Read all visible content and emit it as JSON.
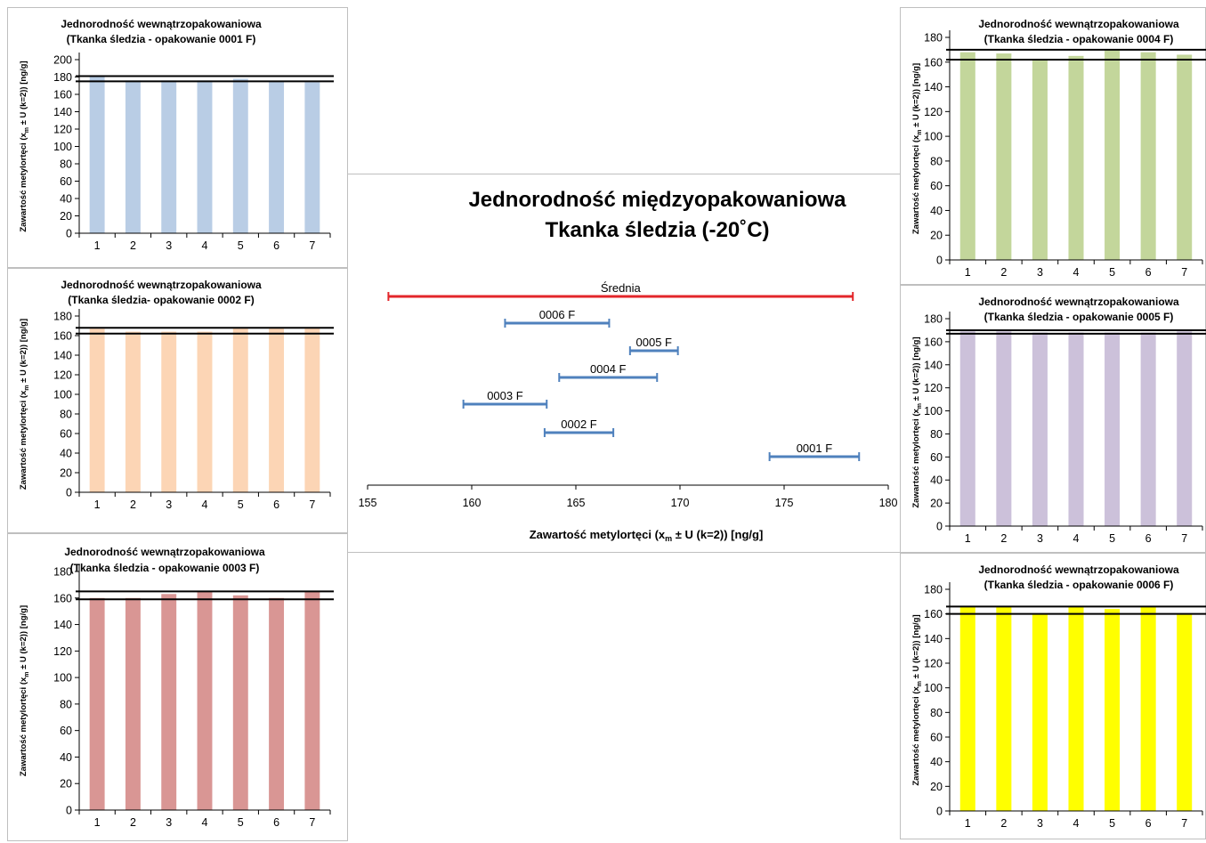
{
  "main": {
    "title_line1": "Jednorodność międzyopakowaniowa",
    "title_line2": "Tkanka śledzia (-20˚C)"
  },
  "colors": {
    "red_mean": "#e3262a",
    "blue_interval": "#4f81bd",
    "pkg_0001": "#b9cde5",
    "pkg_0002": "#fcd5b5",
    "pkg_0003": "#d99694",
    "pkg_0004": "#c3d69b",
    "pkg_0005": "#ccc1da",
    "pkg_0006": "#ffff00"
  },
  "chart_data": [
    {
      "id": "between",
      "type": "interval",
      "title": "Jednorodność międzyopakowaniowa Tkanka śledzia (-20˚C)",
      "xlabel": "Zawartość metylortęci (x",
      "xlabel_sub": "m",
      "xlabel_end": " ± U (k=2)) [ng/g]",
      "xlim": [
        155,
        180
      ],
      "xticks": [
        "155",
        "160",
        "165",
        "170",
        "175",
        "180"
      ],
      "intervals": [
        {
          "name": "Średnia",
          "low": 156.0,
          "high": 178.3,
          "color": "red"
        },
        {
          "name": "0006 F",
          "low": 161.6,
          "high": 166.6
        },
        {
          "name": "0005 F",
          "low": 167.6,
          "high": 169.9
        },
        {
          "name": "0004 F",
          "low": 164.2,
          "high": 168.9
        },
        {
          "name": "0003 F",
          "low": 159.6,
          "high": 163.6
        },
        {
          "name": "0002 F",
          "low": 163.5,
          "high": 166.8
        },
        {
          "name": "0001 F",
          "low": 174.3,
          "high": 178.6
        }
      ]
    },
    {
      "id": "p0001",
      "type": "bar",
      "title_line1": "Jednorodność wewnątrzopakowaniowa",
      "title_line2": "(Tkanka śledzia - opakowanie 0001 F)",
      "ylabel": "Zawartość metylortęci (x",
      "ylabel_sub": "m",
      "ylabel_end": " ± U (k=2)) [ng/g]",
      "ylim": [
        0,
        200
      ],
      "yticks": [
        "0",
        "20",
        "40",
        "60",
        "80",
        "100",
        "120",
        "140",
        "160",
        "180",
        "200"
      ],
      "categories": [
        "1",
        "2",
        "3",
        "4",
        "5",
        "6",
        "7"
      ],
      "values": [
        180,
        176,
        176,
        176,
        178,
        175,
        174
      ],
      "limits": [
        175,
        181
      ],
      "color": "pkg_0001"
    },
    {
      "id": "p0002",
      "type": "bar",
      "title_line1": "Jednorodność wewnątrzopakowaniowa",
      "title_line2": "(Tkanka śledzia- opakowanie 0002 F)",
      "ylabel": "Zawartość metylortęci (x",
      "ylabel_sub": "m",
      "ylabel_end": " ± U (k=2)) [ng/g]",
      "ylim": [
        0,
        180
      ],
      "yticks": [
        "0",
        "20",
        "40",
        "60",
        "80",
        "100",
        "120",
        "140",
        "160",
        "180"
      ],
      "categories": [
        "1",
        "2",
        "3",
        "4",
        "5",
        "6",
        "7"
      ],
      "values": [
        167,
        164,
        164,
        164,
        168,
        168,
        168
      ],
      "limits": [
        162,
        168
      ],
      "color": "pkg_0002"
    },
    {
      "id": "p0003",
      "type": "bar",
      "title_line1": "Jednorodność wewnątrzopakowaniowa",
      "title_line2": "(Tkanka śledzia - opakowanie 0003 F)",
      "ylabel": "Zawartość metylortęci (x",
      "ylabel_sub": "m",
      "ylabel_end": " ± U (k=2)) [ng/g]",
      "ylim": [
        0,
        180
      ],
      "yticks": [
        "0",
        "20",
        "40",
        "60",
        "80",
        "100",
        "120",
        "140",
        "160",
        "180"
      ],
      "categories": [
        "1",
        "2",
        "3",
        "4",
        "5",
        "6",
        "7"
      ],
      "values": [
        160,
        160,
        163,
        165,
        162,
        160,
        165
      ],
      "limits": [
        159,
        165
      ],
      "color": "pkg_0003"
    },
    {
      "id": "p0004",
      "type": "bar",
      "title_line1": "Jednorodność wewnątrzopakowaniowa",
      "title_line2": "(Tkanka śledzia - opakowanie 0004 F)",
      "ylabel": "Zawartość metylortęci (x",
      "ylabel_sub": "m",
      "ylabel_end": " ± U (k=2)) [ng/g]",
      "ylim": [
        0,
        180
      ],
      "yticks": [
        "0",
        "20",
        "40",
        "60",
        "80",
        "100",
        "120",
        "140",
        "160",
        "180"
      ],
      "categories": [
        "1",
        "2",
        "3",
        "4",
        "5",
        "6",
        "7"
      ],
      "values": [
        168,
        167,
        162,
        165,
        170,
        168,
        166
      ],
      "limits": [
        162,
        170
      ],
      "color": "pkg_0004"
    },
    {
      "id": "p0005",
      "type": "bar",
      "title_line1": "Jednorodność wewnątrzopakowaniowa",
      "title_line2": "(Tkanka śledzia - opakowanie 0005 F)",
      "ylabel": "Zawartość metylortęci (x",
      "ylabel_sub": "m",
      "ylabel_end": " ± U (k=2)) [ng/g]",
      "ylim": [
        0,
        180
      ],
      "yticks": [
        "0",
        "20",
        "40",
        "60",
        "80",
        "100",
        "120",
        "140",
        "160",
        "180"
      ],
      "categories": [
        "1",
        "2",
        "3",
        "4",
        "5",
        "6",
        "7"
      ],
      "values": [
        169,
        169,
        168,
        168,
        168,
        168,
        169
      ],
      "limits": [
        167,
        170
      ],
      "color": "pkg_0005"
    },
    {
      "id": "p0006",
      "type": "bar",
      "title_line1": "Jednorodność wewnątrzopakowaniowa",
      "title_line2": "(Tkanka śledzia - opakowanie 0006 F)",
      "ylabel": "Zawartość metylortęci (x",
      "ylabel_sub": "m",
      "ylabel_end": " ± U (k=2)) [ng/g]",
      "ylim": [
        0,
        180
      ],
      "yticks": [
        "0",
        "20",
        "40",
        "60",
        "80",
        "100",
        "120",
        "140",
        "160",
        "180"
      ],
      "categories": [
        "1",
        "2",
        "3",
        "4",
        "5",
        "6",
        "7"
      ],
      "values": [
        166,
        166,
        160,
        166,
        164,
        166,
        160
      ],
      "limits": [
        160,
        166
      ],
      "color": "pkg_0006"
    }
  ]
}
